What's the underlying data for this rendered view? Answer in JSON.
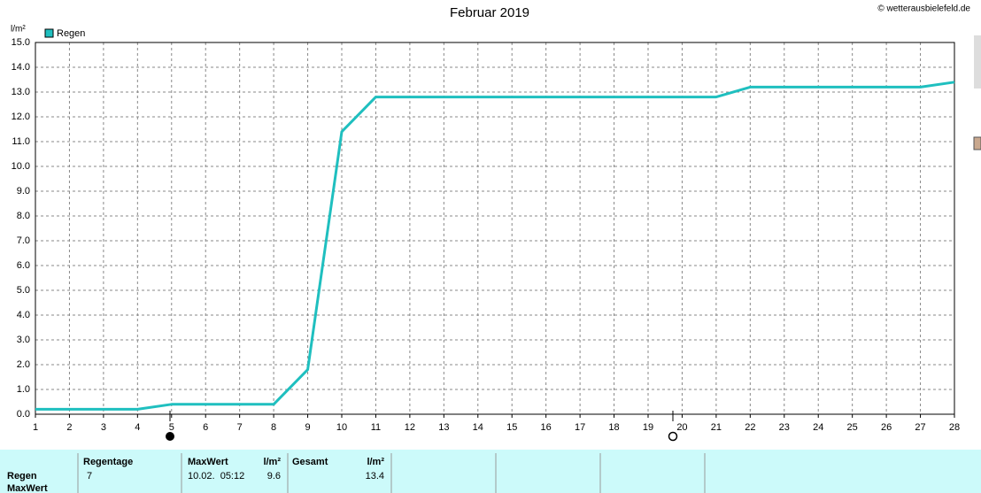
{
  "chart_data": {
    "type": "line",
    "title": "Februar 2019",
    "credit": "© wetterausbielefeld.de",
    "y_label": "l/m²",
    "x": [
      1,
      2,
      3,
      4,
      5,
      6,
      7,
      8,
      9,
      10,
      11,
      12,
      13,
      14,
      15,
      16,
      17,
      18,
      19,
      20,
      21,
      22,
      23,
      24,
      25,
      26,
      27,
      28
    ],
    "series": [
      {
        "name": "Regen",
        "color": "#1fbfbf",
        "values": [
          0.2,
          0.2,
          0.2,
          0.2,
          0.4,
          0.4,
          0.4,
          0.4,
          1.8,
          11.4,
          12.8,
          12.8,
          12.8,
          12.8,
          12.8,
          12.8,
          12.8,
          12.8,
          12.8,
          12.8,
          12.8,
          13.2,
          13.2,
          13.2,
          13.2,
          13.2,
          13.2,
          13.4
        ]
      }
    ],
    "xlim": [
      1,
      28
    ],
    "xticks": [
      1,
      2,
      3,
      4,
      5,
      6,
      7,
      8,
      9,
      10,
      11,
      12,
      13,
      14,
      15,
      16,
      17,
      18,
      19,
      20,
      21,
      22,
      23,
      24,
      25,
      26,
      27,
      28
    ],
    "ylim": [
      0,
      15
    ],
    "yticks": [
      {
        "value": 0,
        "label": "0.0"
      },
      {
        "value": 1,
        "label": "1.0"
      },
      {
        "value": 2,
        "label": "2.0"
      },
      {
        "value": 3,
        "label": "3.0"
      },
      {
        "value": 4,
        "label": "4.0"
      },
      {
        "value": 5,
        "label": "5.0"
      },
      {
        "value": 6,
        "label": "6.0"
      },
      {
        "value": 7,
        "label": "7.0"
      },
      {
        "value": 8,
        "label": "8.0"
      },
      {
        "value": 9,
        "label": "9.0"
      },
      {
        "value": 10,
        "label": "10.0"
      },
      {
        "value": 11,
        "label": "11.0"
      },
      {
        "value": 12,
        "label": "12.0"
      },
      {
        "value": 13,
        "label": "13.0"
      },
      {
        "value": 14,
        "label": "14.0"
      },
      {
        "value": 15,
        "label": "15.0"
      }
    ],
    "grid": true
  },
  "summary": {
    "row_labels": [
      "Regen",
      "MaxWert"
    ],
    "headers": [
      "Regentage",
      "MaxWert",
      "l/m²",
      "Gesamt",
      "l/m²"
    ],
    "values": [
      "7",
      "10.02.  05:12",
      "9.6",
      "13.4"
    ]
  }
}
